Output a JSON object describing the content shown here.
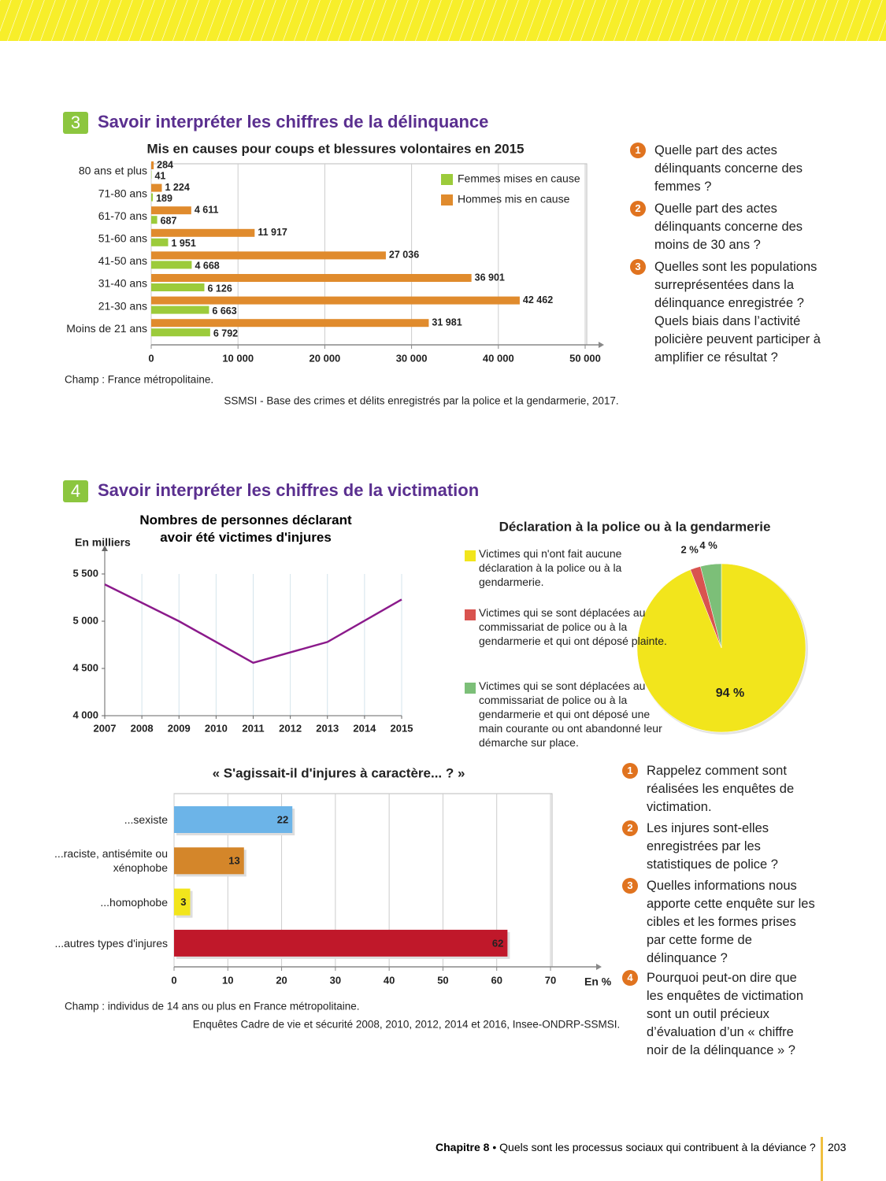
{
  "sections": [
    {
      "number": "3",
      "title": "Savoir interpréter les chiffres de la délinquance",
      "questions": [
        {
          "number": "1",
          "text": "Quelle part des actes délinquants concerne des femmes ?"
        },
        {
          "number": "2",
          "text": "Quelle part des actes délinquants concerne des moins de 30 ans ?"
        },
        {
          "number": "3",
          "text": "Quelles sont les populations surreprésentées dans la délinquance enregistrée ? Quels biais dans l’activité policière peuvent participer à amplifier ce résultat ?"
        }
      ]
    },
    {
      "number": "4",
      "title": "Savoir interpréter les chiffres de la victimation",
      "questions": [
        {
          "number": "1",
          "text": "Rappelez comment sont réalisées les enquêtes de victimation."
        },
        {
          "number": "2",
          "text": "Les injures sont-elles enregistrées par les statistiques de police ?"
        },
        {
          "number": "3",
          "text": "Quelles informations nous apporte cette enquête sur les cibles et les formes prises par cette forme de délinquance ?"
        },
        {
          "number": "4",
          "text": "Pourquoi peut-on dire que les enquêtes de victimation sont un outil précieux d’évaluation d’un « chiffre noir de la délinquance » ?"
        }
      ]
    }
  ],
  "footer": {
    "chapter": "Chapitre 8",
    "text": "• Quels sont les processus sociaux qui contribuent à la déviance ?",
    "page": "203"
  },
  "chart_data": [
    {
      "type": "bar",
      "title": "Mis en causes pour coups et blessures volontaires en 2015",
      "categories": [
        "80 ans et plus",
        "71-80 ans",
        "61-70 ans",
        "51-60 ans",
        "41-50 ans",
        "31-40 ans",
        "21-30 ans",
        "Moins de 21 ans"
      ],
      "series": [
        {
          "name": "Femmes mises en cause",
          "color": "#9ccb3b",
          "values": [
            41,
            189,
            687,
            1951,
            4668,
            6126,
            6663,
            6792
          ],
          "value_labels": [
            "41",
            "189",
            "687",
            "1 951",
            "4 668",
            "6 126",
            "6 663",
            "6 792"
          ]
        },
        {
          "name": "Hommes mis en cause",
          "color": "#e08b2d",
          "values": [
            284,
            1224,
            4611,
            11917,
            27036,
            36901,
            42462,
            31981
          ],
          "value_labels": [
            "284",
            "1 224",
            "4 611",
            "11 917",
            "27 036",
            "36 901",
            "42 462",
            "31 981"
          ]
        }
      ],
      "xlim": [
        0,
        50000
      ],
      "xticks": [
        0,
        {
          "value": 10000,
          "label": "10 000"
        },
        {
          "value": 20000,
          "label": "20 000"
        },
        {
          "value": 30000,
          "label": "30 000"
        },
        {
          "value": 40000,
          "label": "40 000"
        },
        {
          "value": 50000,
          "label": "50 000"
        }
      ],
      "grid": true,
      "note": "Champ : France métropolitaine.",
      "source": "SSMSI - Base des crimes et délits enregistrés par la police et la gendarmerie, 2017."
    },
    {
      "type": "line",
      "title": "Nombres de personnes déclarant avoir été victimes d'injures",
      "y_label": "En milliers",
      "x": [
        2007,
        2009,
        2011,
        2013,
        2015
      ],
      "values": [
        5390,
        5000,
        4560,
        4780,
        5230
      ],
      "color": "#8b1a8b",
      "xlim": [
        2007,
        2015
      ],
      "xticks": [
        2007,
        2008,
        2009,
        2010,
        2011,
        2012,
        2013,
        2014,
        2015
      ],
      "ylim": [
        4000,
        5500
      ],
      "yticks": [
        {
          "value": 4000,
          "label": "4 000"
        },
        {
          "value": 4500,
          "label": "4 500"
        },
        {
          "value": 5000,
          "label": "5 000"
        },
        {
          "value": 5500,
          "label": "5 500"
        }
      ],
      "grid": true
    },
    {
      "type": "pie",
      "title": "Déclaration à la police ou à la gendarmerie",
      "categories": [
        "Victimes qui n'ont fait aucune déclaration à la police ou à la gendarmerie.",
        "Victimes qui se sont déplacées au commissariat de police ou à la gendarmerie et qui ont déposé plainte.",
        "Victimes qui se sont déplacées au commissariat de police ou à la gendarmerie et qui ont déposé une main courante ou ont abandonné leur démarche sur place."
      ],
      "values": [
        94,
        2,
        4
      ],
      "value_labels": [
        "94 %",
        "2 %",
        "4 %"
      ],
      "colors": [
        "#f2e51c",
        "#d9534f",
        "#7cbf78"
      ]
    },
    {
      "type": "bar",
      "title": "« S'agissait-il d'injures à caractère... ? »",
      "categories": [
        "...sexiste",
        "...raciste, antisémite ou xénophobe",
        "...homophobe",
        "...autres types d'injures"
      ],
      "values": [
        22,
        13,
        3,
        62
      ],
      "colors": [
        "#6cb4e8",
        "#d4862a",
        "#f2e51c",
        "#c0182a"
      ],
      "x_label": "En %",
      "xlim": [
        0,
        70
      ],
      "xticks": [
        0,
        10,
        20,
        30,
        40,
        50,
        60,
        70
      ],
      "grid": true,
      "note": "Champ : individus de 14 ans ou plus en France métropolitaine.",
      "source": "Enquêtes Cadre de vie et sécurité 2008, 2010, 2012, 2014 et 2016, Insee-ONDRP-SSMSI."
    }
  ]
}
